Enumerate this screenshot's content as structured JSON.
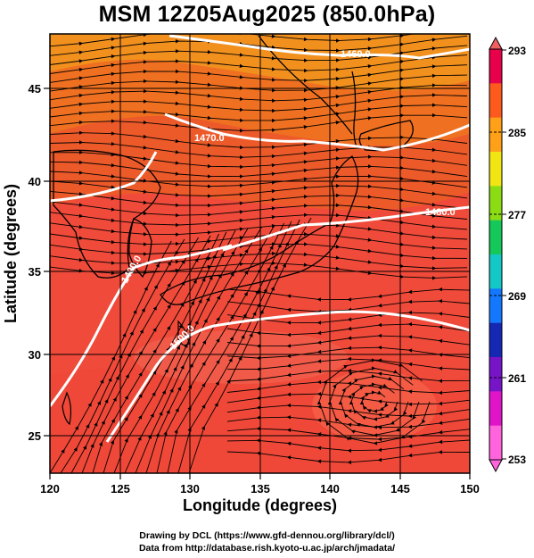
{
  "title": "MSM 12Z05Aug2025 (850.0hPa)",
  "axes": {
    "xlabel": "Longitude (degrees)",
    "ylabel": "Latitude  (degrees)",
    "x_ticks": [
      "120",
      "125",
      "130",
      "135",
      "140",
      "145",
      "150"
    ],
    "y_ticks": [
      "25",
      "30",
      "35",
      "40",
      "45"
    ]
  },
  "colorbar": {
    "labels": [
      "293",
      "285",
      "277",
      "269",
      "261",
      "253"
    ],
    "colors": [
      "#e8004a",
      "#ff5a1e",
      "#ffa019",
      "#f0e614",
      "#8cdc14",
      "#14c85a",
      "#14c8c8",
      "#1478ff",
      "#1428b4",
      "#7814c8",
      "#e014c8",
      "#ff64dc"
    ]
  },
  "contours": {
    "color": "#ffffff",
    "labels": [
      "1460.0",
      "1470.0",
      "1480.0",
      "1490.0",
      "1500.0"
    ]
  },
  "footer": {
    "line1": "Drawing by DCL (https://www.gfd-dennou.org/library/dcl/)",
    "line2": "Data from http://database.rish.kyoto-u.ac.jp/arch/jmadata/"
  }
}
